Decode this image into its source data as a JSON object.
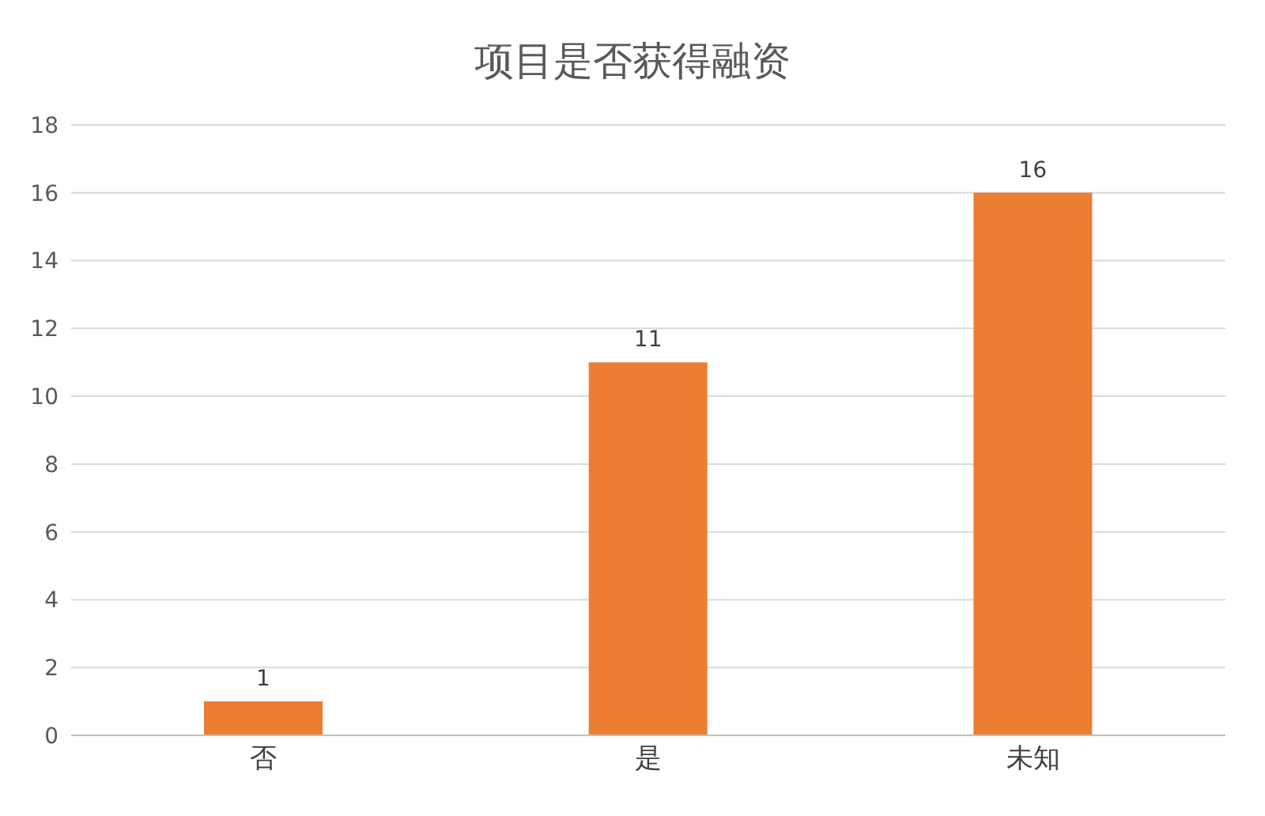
{
  "chart_data": {
    "type": "bar",
    "title": "项目是否获得融资",
    "categories": [
      "否",
      "是",
      "未知"
    ],
    "values": [
      1,
      11,
      16
    ],
    "color": "#ed7d31",
    "ylim": [
      0,
      18
    ],
    "yticks": [
      0,
      2,
      4,
      6,
      8,
      10,
      12,
      14,
      16,
      18
    ],
    "grid": "y",
    "data_labels": true
  }
}
